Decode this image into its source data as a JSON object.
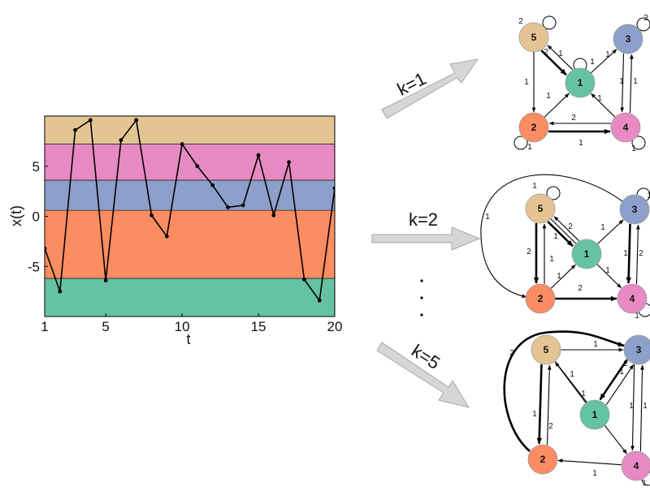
{
  "colors": {
    "band1": "#66c2a5",
    "band2": "#fc8d62",
    "band3": "#8da0cb",
    "band4": "#e78ac3",
    "band5": "#e5c494",
    "arrow_fill": "#d6d6d6",
    "arrow_stroke": "#a8a8a8"
  },
  "chart_data": {
    "type": "line",
    "xlabel": "t",
    "ylabel": "x(t)",
    "xlim": [
      1,
      20
    ],
    "ylim": [
      -10,
      10
    ],
    "xticks": [
      "1",
      "5",
      "10",
      "15",
      "20"
    ],
    "xtick_values": [
      1,
      5,
      10,
      15,
      20
    ],
    "yticks": [
      "5",
      "0",
      "-5"
    ],
    "ytick_values": [
      5,
      0,
      -5
    ],
    "bands": [
      {
        "id": 1,
        "from": -10.0,
        "to": -6.2
      },
      {
        "id": 2,
        "from": -6.2,
        "to": 0.6
      },
      {
        "id": 3,
        "from": 0.6,
        "to": 3.6
      },
      {
        "id": 4,
        "from": 3.6,
        "to": 7.2
      },
      {
        "id": 5,
        "from": 7.2,
        "to": 10.0
      }
    ],
    "series": [
      {
        "x": [
          1,
          2,
          3,
          4,
          5,
          6,
          7,
          8,
          9,
          10,
          11,
          12,
          13,
          14,
          15,
          16,
          17,
          18,
          19,
          20
        ],
        "values": [
          -3.2,
          -7.5,
          8.6,
          9.6,
          -6.4,
          7.6,
          9.6,
          0.1,
          -2.0,
          7.2,
          5.0,
          3.1,
          0.9,
          1.1,
          6.1,
          0.1,
          5.4,
          -6.3,
          -8.4,
          2.8
        ]
      }
    ]
  },
  "transitions": [
    {
      "label": "k=1",
      "nodes": [
        "1",
        "2",
        "3",
        "4",
        "5"
      ],
      "edges": [
        {
          "from": "5",
          "to": "1",
          "label": "2"
        },
        {
          "from": "1",
          "to": "5",
          "label": "1"
        },
        {
          "from": "1",
          "to": "3",
          "label": "1"
        },
        {
          "from": "5",
          "to": "2",
          "label": "1"
        },
        {
          "from": "2",
          "to": "1",
          "label": "1"
        },
        {
          "from": "4",
          "to": "1",
          "label": "1"
        },
        {
          "from": "3",
          "to": "4",
          "label": "1"
        },
        {
          "from": "4",
          "to": "3",
          "label": "1"
        },
        {
          "from": "2",
          "to": "4",
          "label": "2"
        },
        {
          "from": "4",
          "to": "2",
          "label": "1"
        }
      ],
      "loops": [
        {
          "node": "5",
          "label": "2"
        },
        {
          "node": "1",
          "label": "1"
        },
        {
          "node": "3",
          "label": "2"
        },
        {
          "node": "2",
          "label": "1"
        },
        {
          "node": "4",
          "label": "1"
        }
      ]
    },
    {
      "label": "k=2",
      "nodes": [
        "1",
        "2",
        "3",
        "4",
        "5"
      ],
      "edges": [
        {
          "from": "3",
          "to": "2",
          "label": "1"
        },
        {
          "from": "5",
          "to": "1",
          "label": "2"
        },
        {
          "from": "1",
          "to": "5",
          "label": "1"
        },
        {
          "from": "5",
          "to": "2",
          "label": "2"
        },
        {
          "from": "2",
          "to": "5",
          "label": "1"
        },
        {
          "from": "2",
          "to": "1",
          "label": "1"
        },
        {
          "from": "1",
          "to": "3",
          "label": "1"
        },
        {
          "from": "5",
          "to": "4",
          "label": "1"
        },
        {
          "from": "3",
          "to": "4",
          "label": "2"
        },
        {
          "from": "4",
          "to": "3",
          "label": "1"
        },
        {
          "from": "2",
          "to": "4",
          "label": "2"
        }
      ],
      "loops": [
        {
          "node": "5",
          "label": "1"
        },
        {
          "node": "3",
          "label": "1"
        },
        {
          "node": "4",
          "label": "1"
        }
      ]
    },
    {
      "label": "k=5",
      "nodes": [
        "1",
        "2",
        "3",
        "4",
        "5"
      ],
      "edges": [
        {
          "from": "2",
          "to": "3",
          "label": "2"
        },
        {
          "from": "5",
          "to": "3",
          "label": "1"
        },
        {
          "from": "3",
          "to": "1",
          "label": "2"
        },
        {
          "from": "1",
          "to": "3",
          "label": "1"
        },
        {
          "from": "1",
          "to": "5",
          "label": "1"
        },
        {
          "from": "5",
          "to": "4",
          "label": "1"
        },
        {
          "from": "2",
          "to": "5",
          "label": "1"
        },
        {
          "from": "5",
          "to": "2",
          "label": "2"
        },
        {
          "from": "3",
          "to": "4",
          "label": "1"
        },
        {
          "from": "4",
          "to": "3",
          "label": "1"
        },
        {
          "from": "4",
          "to": "2",
          "label": "1"
        }
      ],
      "loops": [
        {
          "node": "4",
          "label": "1"
        }
      ]
    }
  ],
  "ellipsis": "·"
}
